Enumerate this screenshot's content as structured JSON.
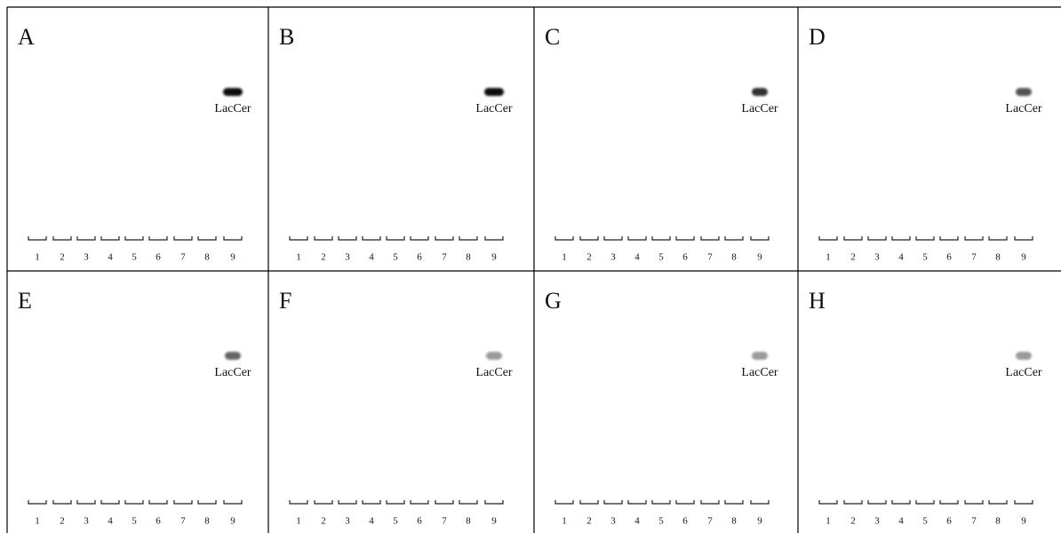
{
  "panels": [
    {
      "label": "A",
      "band_label": "LacCer",
      "band_color": "#111111",
      "lanes": [
        "1",
        "2",
        "3",
        "4",
        "5",
        "6",
        "7",
        "8",
        "9"
      ]
    },
    {
      "label": "B",
      "band_label": "LacCer",
      "band_color": "#111111",
      "lanes": [
        "1",
        "2",
        "3",
        "4",
        "5",
        "6",
        "7",
        "8",
        "9"
      ]
    },
    {
      "label": "C",
      "band_label": "LacCer",
      "band_color": "#333333",
      "lanes": [
        "1",
        "2",
        "3",
        "4",
        "5",
        "6",
        "7",
        "8",
        "9"
      ]
    },
    {
      "label": "D",
      "band_label": "LacCer",
      "band_color": "#555555",
      "lanes": [
        "1",
        "2",
        "3",
        "4",
        "5",
        "6",
        "7",
        "8",
        "9"
      ]
    },
    {
      "label": "E",
      "band_label": "LacCer",
      "band_color": "#666666",
      "lanes": [
        "1",
        "2",
        "3",
        "4",
        "5",
        "6",
        "7",
        "8",
        "9"
      ]
    },
    {
      "label": "F",
      "band_label": "LacCer",
      "band_color": "#9a9a9a",
      "lanes": [
        "1",
        "2",
        "3",
        "4",
        "5",
        "6",
        "7",
        "8",
        "9"
      ]
    },
    {
      "label": "G",
      "band_label": "LacCer",
      "band_color": "#9a9a9a",
      "lanes": [
        "1",
        "2",
        "3",
        "4",
        "5",
        "6",
        "7",
        "8",
        "9"
      ]
    },
    {
      "label": "H",
      "band_label": "LacCer",
      "band_color": "#9a9a9a",
      "lanes": [
        "1",
        "2",
        "3",
        "4",
        "5",
        "6",
        "7",
        "8",
        "9"
      ]
    }
  ]
}
